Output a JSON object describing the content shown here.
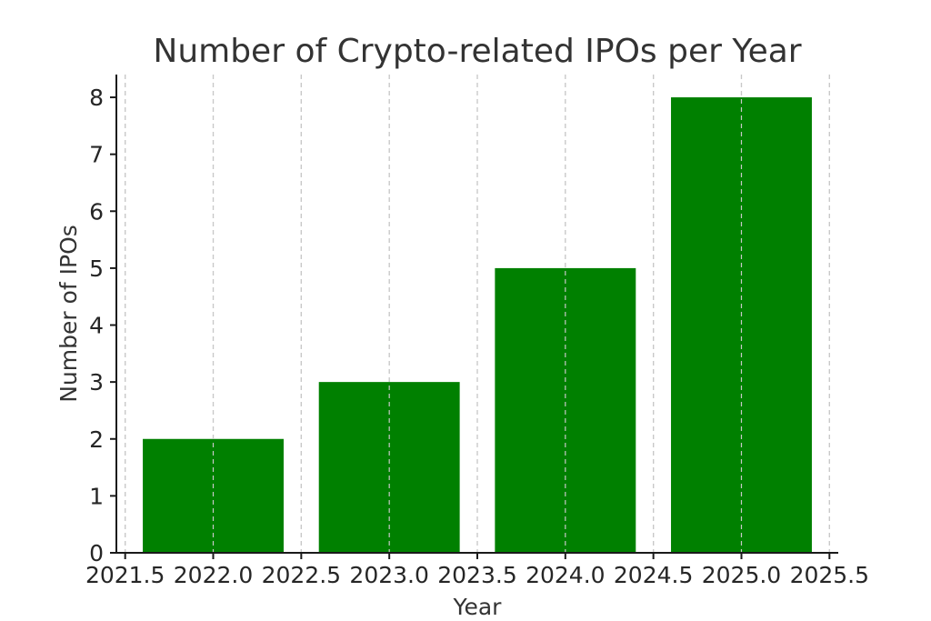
{
  "chart_data": {
    "type": "bar",
    "title": "Number of Crypto-related IPOs per Year",
    "xlabel": "Year",
    "ylabel": "Number of IPOs",
    "categories": [
      2022,
      2023,
      2024,
      2025
    ],
    "values": [
      2,
      3,
      5,
      8
    ],
    "bar_width": 0.8,
    "bar_color": "#008000",
    "xlim": [
      2021.45,
      2025.55
    ],
    "ylim": [
      0,
      8.4
    ],
    "x_ticks": [
      "2021.5",
      "2022.0",
      "2022.5",
      "2023.0",
      "2023.5",
      "2024.0",
      "2024.5",
      "2025.0",
      "2025.5"
    ],
    "y_ticks": [
      "0",
      "1",
      "2",
      "3",
      "4",
      "5",
      "6",
      "7",
      "8"
    ],
    "grid": "x-axis dashed",
    "legend": "none"
  }
}
